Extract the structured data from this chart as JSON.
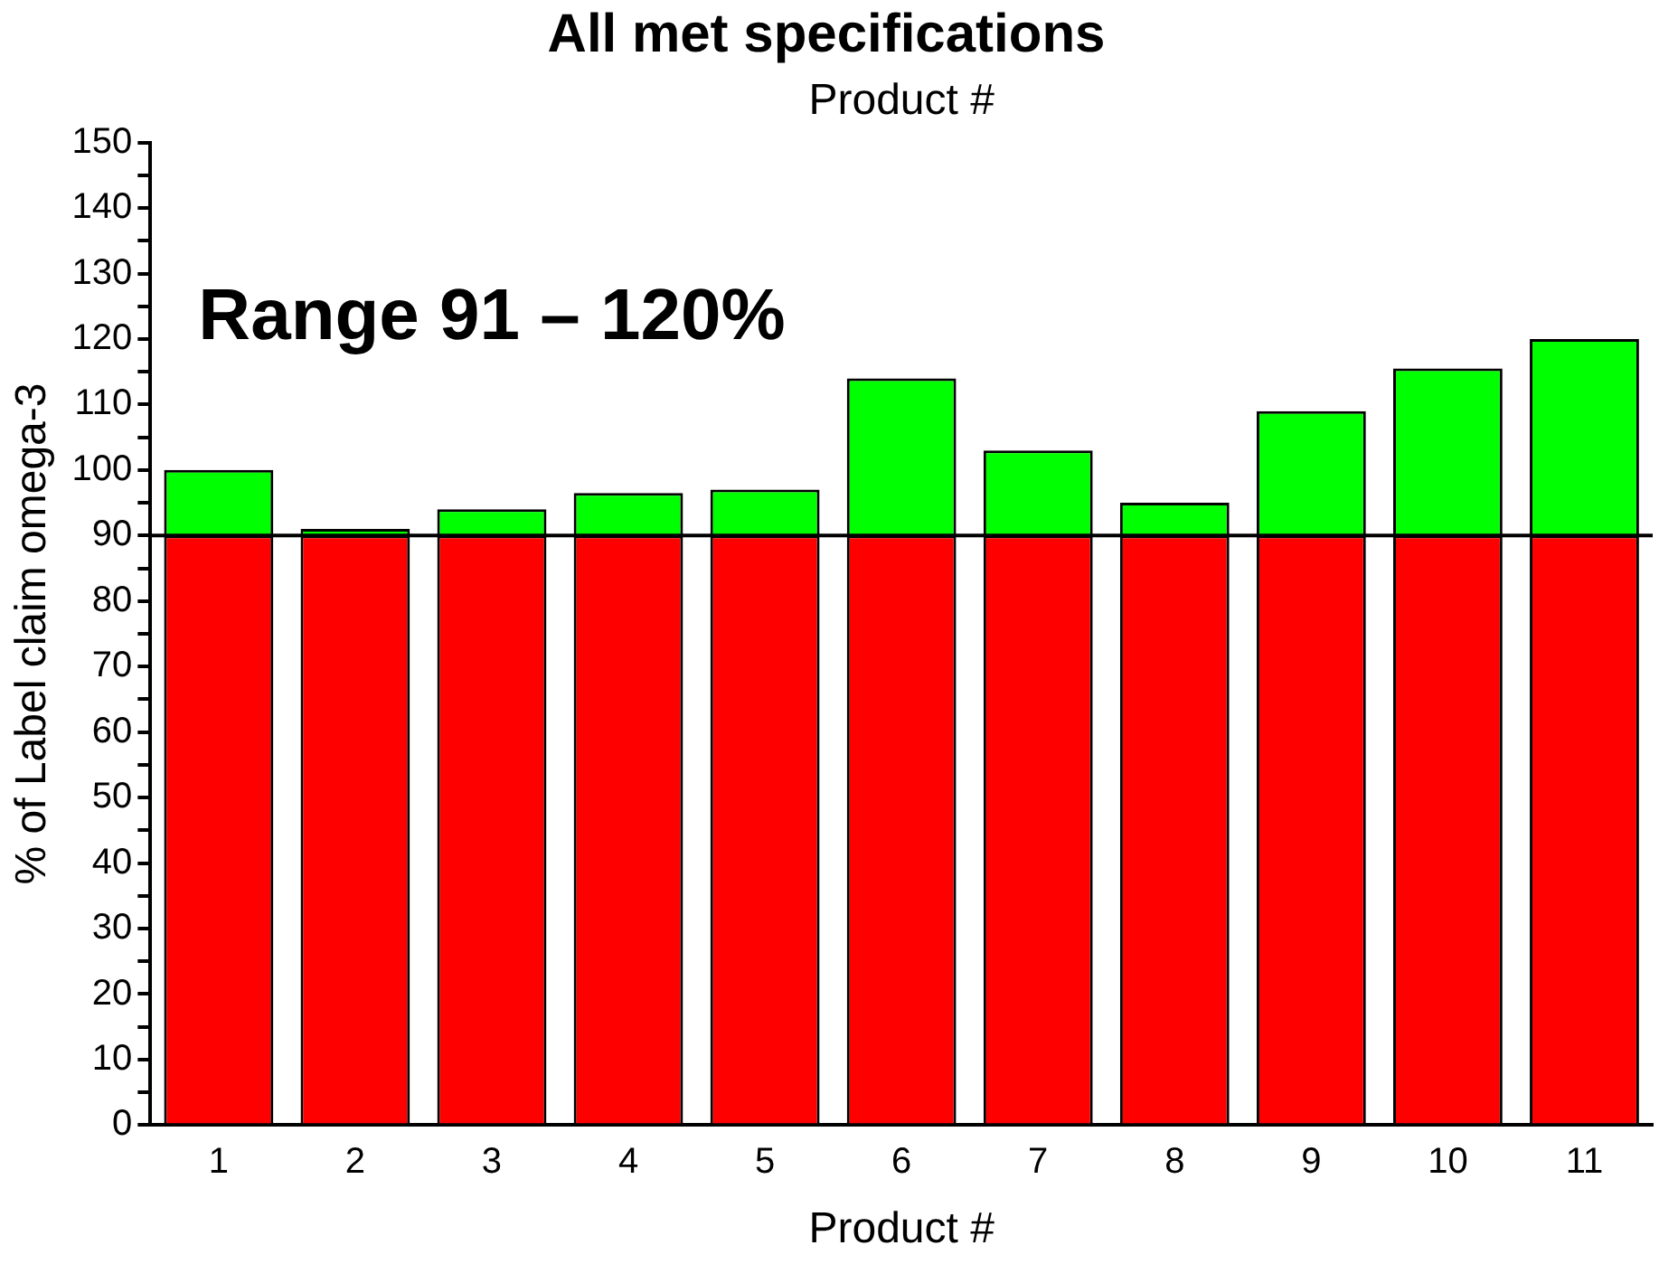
{
  "chart_data": {
    "type": "bar",
    "title": "All met specifications",
    "xlabel": "Product #",
    "x2label": "Product #",
    "ylabel": "% of Label claim omega-3",
    "categories": [
      "1",
      "2",
      "3",
      "4",
      "5",
      "6",
      "7",
      "8",
      "9",
      "10",
      "11"
    ],
    "stacked": true,
    "series": [
      {
        "color": "#ff0000",
        "values": [
          90,
          90,
          90,
          90,
          90,
          90,
          90,
          90,
          90,
          90,
          90
        ]
      },
      {
        "color": "#00ff00",
        "values": [
          10,
          1,
          4,
          6.5,
          7,
          24,
          13,
          5,
          19,
          25.5,
          30
        ]
      }
    ],
    "ylim": [
      0,
      150
    ],
    "yticks": [
      0,
      {
        "value": 5,
        "label": null
      },
      10,
      {
        "value": 15,
        "label": null
      },
      20,
      {
        "value": 25,
        "label": null
      },
      30,
      {
        "value": 35,
        "label": null
      },
      40,
      {
        "value": 45,
        "label": null
      },
      50,
      {
        "value": 55,
        "label": null
      },
      60,
      {
        "value": 65,
        "label": null
      },
      70,
      {
        "value": 75,
        "label": null
      },
      80,
      {
        "value": 85,
        "label": null
      },
      90,
      {
        "value": 95,
        "label": null
      },
      100,
      {
        "value": 105,
        "label": null
      },
      110,
      {
        "value": 115,
        "label": null
      },
      120,
      {
        "value": 125,
        "label": null
      },
      130,
      {
        "value": 135,
        "label": null
      },
      140,
      {
        "value": 145,
        "label": null
      },
      150
    ],
    "ref_lines": [
      {
        "axis": "y",
        "value": 90,
        "color": "#000000"
      }
    ],
    "annotations": [
      "Range 91 – 120%"
    ],
    "grid": false,
    "legend": false
  }
}
